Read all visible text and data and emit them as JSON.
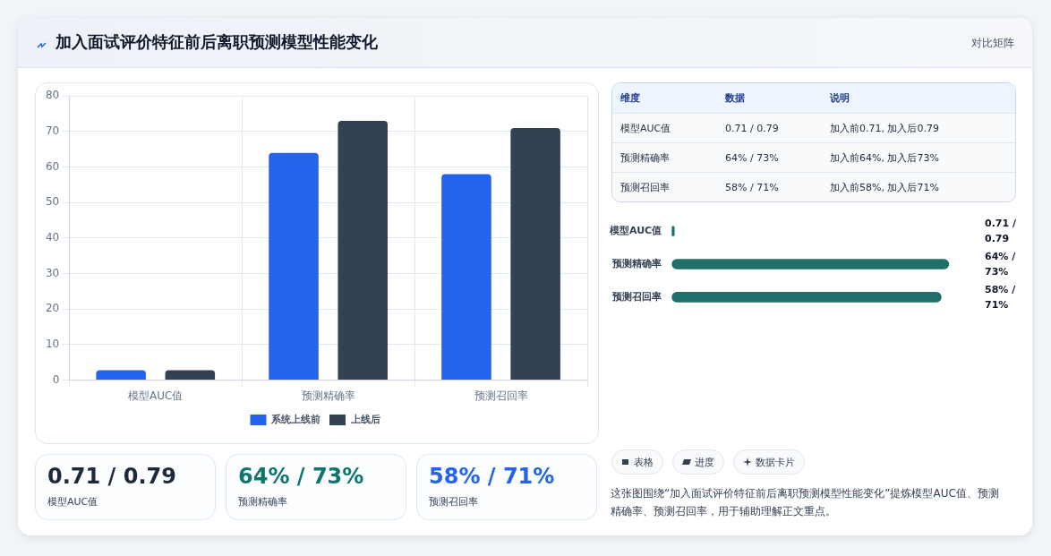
{
  "chart_data": [
    {
      "type": "bar",
      "title": "加入面试评价特征前后离职预测模型性能变化",
      "annotations": [
        "对比矩阵"
      ],
      "categories": [
        "模型AUC值",
        "预测精确率",
        "预测召回率"
      ],
      "series": [
        {
          "name": "系统上线前",
          "color": "#2563eb",
          "values": [
            2.8,
            64,
            58
          ]
        },
        {
          "name": "上线后",
          "color": "#334155",
          "values": [
            2.8,
            73,
            71
          ]
        }
      ],
      "ylim": [
        0,
        80
      ],
      "yticks": [
        0,
        10,
        20,
        30,
        40,
        50,
        60,
        70,
        80
      ],
      "grid": true,
      "legend": "bottom"
    },
    {
      "type": "other",
      "annotations": [
        "维度",
        "数据",
        "说明",
        "模型AUC值",
        "0.71 / 0.79",
        "加入前0.71, 加入后0.79",
        "预测精确率",
        "64% / 73%",
        "加入前64%, 加入后73%",
        "预测召回率",
        "58% / 71%",
        "加入前58%, 加入后71%"
      ]
    },
    {
      "type": "bar",
      "orientation": "horizontal",
      "categories": [
        "模型AUC值",
        "预测精确率",
        "预测召回率"
      ],
      "values": [
        0.79,
        73,
        71
      ],
      "color": "#1f6f6a",
      "value_labels": [
        "0.71 / 0.79",
        "64% / 73%",
        "58% / 71%"
      ]
    },
    {
      "type": "other",
      "annotations": [
        "0.71 / 0.79",
        "模型AUC值",
        "64% / 73%",
        "预测精确率",
        "58% / 71%",
        "预测召回率"
      ],
      "colors": [
        "#1e293b",
        "#0f766e",
        "#2563eb"
      ]
    },
    {
      "type": "other",
      "annotations": [
        "表格",
        "进度",
        "数据卡片",
        "这张图围绕“加入面试评价特征前后离职预测模型性能变化”提炼模型AUC值、预测精确率、预测召回率，用于辅助理解正文重点。"
      ]
    }
  ]
}
